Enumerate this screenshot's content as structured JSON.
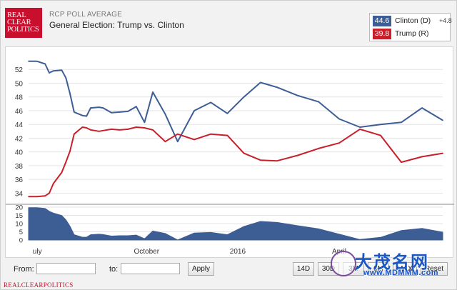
{
  "header": {
    "logo_lines": [
      "REAL",
      "CLEAR",
      "POLITICS"
    ],
    "supertitle": "RCP POLL AVERAGE",
    "title": "General Election: Trump vs. Clinton"
  },
  "legend": {
    "items": [
      {
        "value": "44.6",
        "name": "Clinton (D)",
        "spread": "+4.8",
        "color": "#3d5d95"
      },
      {
        "value": "39.8",
        "name": "Trump (R)",
        "spread": "",
        "color": "#c8202a"
      }
    ]
  },
  "controls": {
    "from_label": "From:",
    "to_label": "to:",
    "apply_label": "Apply",
    "range_buttons": [
      "14D",
      "30D",
      "3M",
      "6M",
      "MAX",
      "Reset"
    ]
  },
  "footer": "REALCLEARPOLITICS",
  "watermark": {
    "text": "大茂名网",
    "url": "www.MDMMM.com"
  },
  "chart_data": [
    {
      "type": "line",
      "title": "",
      "ylim": [
        33,
        54
      ],
      "yticks": [
        34,
        36,
        38,
        40,
        42,
        44,
        46,
        48,
        50,
        52
      ],
      "grid": true,
      "x": [
        0,
        2,
        4,
        5,
        6,
        8,
        9,
        10,
        11,
        13,
        14,
        15,
        17,
        18,
        20,
        22,
        24,
        26,
        28,
        30,
        33,
        36,
        40,
        44,
        48,
        52,
        56,
        60,
        65,
        70,
        75,
        80,
        85,
        90,
        95,
        100
      ],
      "series": [
        {
          "name": "Clinton (D)",
          "color": "#3d5d95",
          "values": [
            53.2,
            53.2,
            52.8,
            51.5,
            51.8,
            51.9,
            50.8,
            48.5,
            45.8,
            45.3,
            45.2,
            46.4,
            46.5,
            46.4,
            45.7,
            45.8,
            45.9,
            46.6,
            44.3,
            48.7,
            45.5,
            41.5,
            46.0,
            47.2,
            45.6,
            48.0,
            50.1,
            49.4,
            48.2,
            47.3,
            44.8,
            43.6,
            44.0,
            44.3,
            46.4,
            44.6
          ]
        },
        {
          "name": "Trump (R)",
          "color": "#c8202a",
          "values": [
            33.5,
            33.5,
            33.6,
            34.0,
            35.4,
            37.0,
            38.5,
            40.1,
            42.6,
            43.6,
            43.5,
            43.2,
            43.0,
            43.1,
            43.3,
            43.2,
            43.3,
            43.6,
            43.5,
            43.2,
            41.5,
            42.6,
            41.8,
            42.6,
            42.4,
            39.8,
            38.8,
            38.7,
            39.5,
            40.5,
            41.3,
            43.3,
            42.4,
            38.5,
            39.3,
            39.8
          ]
        }
      ]
    },
    {
      "type": "area",
      "title": "",
      "ylim": [
        0,
        20
      ],
      "yticks": [
        0,
        5,
        10,
        15,
        20
      ],
      "x_tick_labels": [
        "uly",
        "October",
        "2016",
        "April"
      ],
      "x": [
        0,
        2,
        4,
        5,
        6,
        8,
        9,
        10,
        11,
        13,
        14,
        15,
        17,
        18,
        20,
        22,
        24,
        26,
        28,
        30,
        33,
        36,
        40,
        44,
        48,
        52,
        56,
        60,
        65,
        70,
        75,
        80,
        85,
        90,
        95,
        100
      ],
      "series": [
        {
          "name": "Clinton (D) spread",
          "color": "#3d5d95",
          "values": [
            19.7,
            19.7,
            19.2,
            17.5,
            16.4,
            14.9,
            12.3,
            8.4,
            3.2,
            1.7,
            1.7,
            3.2,
            3.5,
            3.3,
            2.4,
            2.6,
            2.6,
            3.0,
            0.8,
            5.5,
            4.0,
            0,
            4.2,
            4.6,
            3.2,
            8.2,
            11.3,
            10.7,
            8.7,
            6.8,
            3.5,
            0.3,
            1.6,
            5.8,
            7.1,
            4.8
          ]
        }
      ]
    }
  ]
}
